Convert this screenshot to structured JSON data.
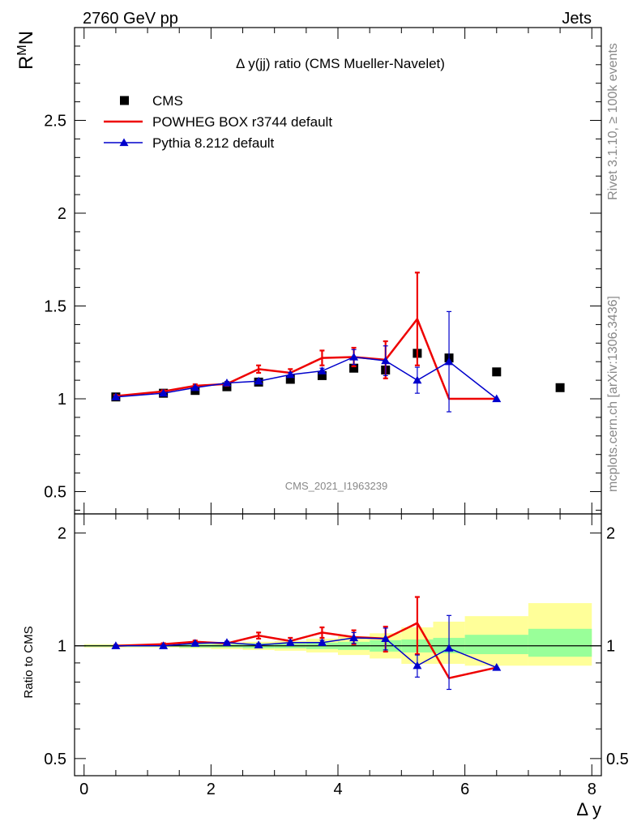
{
  "header": {
    "left": "2760 GeV pp",
    "right": "Jets"
  },
  "side_labels": {
    "rivet": "Rivet 3.1.10, ≥ 100k events",
    "mcplots": "mcplots.cern.ch [arXiv:1306.3436]"
  },
  "chart_data": {
    "type": "line",
    "title": "Δ y(jj) ratio (CMS Mueller-Navelet)",
    "watermark": "CMS_2021_I1963239",
    "xlabel": "Δ y",
    "ylabel": "R^M_N",
    "ylabel_main": "R",
    "ylabel_sup": "M",
    "ylabel_sub": "N",
    "ratio_ylabel": "Ratio to CMS",
    "xlim": [
      -0.15,
      8.15
    ],
    "ylim": [
      0.38,
      3.0
    ],
    "ratio_ylim": [
      0.45,
      2.25
    ],
    "x_ticks": [
      "0",
      "2",
      "4",
      "6",
      "8"
    ],
    "x_tick_values": [
      0,
      2,
      4,
      6,
      8
    ],
    "y_ticks": [
      "0.5",
      "1",
      "1.5",
      "2",
      "2.5"
    ],
    "y_tick_values": [
      0.5,
      1,
      1.5,
      2,
      2.5
    ],
    "ratio_ticks": [
      "0.5",
      "1",
      "2"
    ],
    "ratio_tick_values": [
      0.5,
      1,
      2
    ],
    "legend": [
      {
        "name": "CMS",
        "color": "#000000",
        "style": "square"
      },
      {
        "name": "POWHEG BOX r3744 default",
        "color": "#ee0000",
        "style": "line"
      },
      {
        "name": "Pythia 8.212 default",
        "color": "#0000cc",
        "style": "triangle"
      }
    ],
    "series": [
      {
        "name": "CMS",
        "x": [
          0.5,
          1.25,
          1.75,
          2.25,
          2.75,
          3.25,
          3.75,
          4.25,
          4.75,
          5.25,
          5.75,
          6.5,
          7.5
        ],
        "values": [
          1.01,
          1.03,
          1.045,
          1.065,
          1.09,
          1.105,
          1.125,
          1.165,
          1.155,
          1.245,
          1.22,
          1.145,
          1.06
        ]
      },
      {
        "name": "POWHEG BOX r3744 default",
        "x": [
          0.5,
          1.25,
          1.75,
          2.25,
          2.75,
          3.25,
          3.75,
          4.25,
          4.75,
          5.25,
          5.75,
          6.5
        ],
        "values": [
          1.015,
          1.04,
          1.07,
          1.08,
          1.16,
          1.14,
          1.22,
          1.225,
          1.21,
          1.43,
          1.0,
          1.0
        ],
        "errors": [
          0.005,
          0.006,
          0.008,
          0.01,
          0.02,
          0.02,
          0.04,
          0.05,
          0.1,
          0.25,
          0,
          0
        ]
      },
      {
        "name": "Pythia 8.212 default",
        "x": [
          0.5,
          1.25,
          1.75,
          2.25,
          2.75,
          3.25,
          3.75,
          4.25,
          4.75,
          5.25,
          5.75,
          6.5
        ],
        "values": [
          1.01,
          1.03,
          1.06,
          1.085,
          1.095,
          1.13,
          1.15,
          1.225,
          1.205,
          1.1,
          1.2,
          1.0
        ],
        "errors": [
          0.004,
          0.005,
          0.006,
          0.008,
          0.01,
          0.012,
          0.015,
          0.04,
          0.08,
          0.07,
          0.27,
          0
        ]
      }
    ],
    "ratio_series": [
      {
        "name": "POWHEG BOX r3744 default",
        "x": [
          0.5,
          1.25,
          1.75,
          2.25,
          2.75,
          3.25,
          3.75,
          4.25,
          4.75,
          5.25,
          5.75,
          6.5
        ],
        "values": [
          1.0,
          1.01,
          1.025,
          1.015,
          1.065,
          1.03,
          1.085,
          1.055,
          1.045,
          1.15,
          0.82,
          0.875
        ],
        "errors": [
          0.005,
          0.006,
          0.008,
          0.01,
          0.02,
          0.02,
          0.035,
          0.045,
          0.08,
          0.2,
          0,
          0
        ]
      },
      {
        "name": "Pythia 8.212 default",
        "x": [
          0.5,
          1.25,
          1.75,
          2.25,
          2.75,
          3.25,
          3.75,
          4.25,
          4.75,
          5.25,
          5.75,
          6.5
        ],
        "values": [
          1.0,
          1.0,
          1.015,
          1.02,
          1.005,
          1.02,
          1.02,
          1.05,
          1.045,
          0.885,
          0.985,
          0.875
        ],
        "errors": [
          0.004,
          0.005,
          0.006,
          0.008,
          0.01,
          0.012,
          0.015,
          0.035,
          0.07,
          0.06,
          0.22,
          0
        ]
      }
    ],
    "ratio_bands": {
      "edges": [
        0,
        1,
        1.5,
        2,
        2.5,
        3,
        3.5,
        4,
        4.5,
        5,
        5.5,
        6,
        7,
        8
      ],
      "stat_lo": [
        0.995,
        0.995,
        0.99,
        0.99,
        0.985,
        0.985,
        0.98,
        0.975,
        0.965,
        0.96,
        0.955,
        0.95,
        0.935
      ],
      "stat_hi": [
        1.005,
        1.005,
        1.01,
        1.01,
        1.015,
        1.015,
        1.02,
        1.025,
        1.035,
        1.04,
        1.05,
        1.07,
        1.11
      ],
      "total_lo": [
        0.99,
        0.99,
        0.985,
        0.98,
        0.975,
        0.97,
        0.96,
        0.945,
        0.925,
        0.895,
        0.895,
        0.885,
        0.885
      ],
      "total_hi": [
        1.01,
        1.01,
        1.015,
        1.02,
        1.025,
        1.03,
        1.045,
        1.06,
        1.08,
        1.12,
        1.16,
        1.2,
        1.3
      ]
    }
  }
}
